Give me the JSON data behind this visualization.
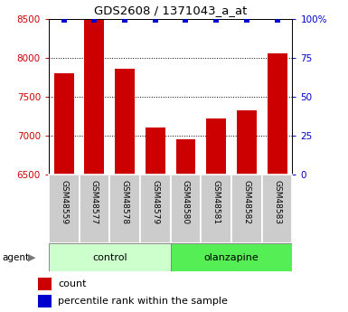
{
  "title": "GDS2608 / 1371043_a_at",
  "samples": [
    "GSM48559",
    "GSM48577",
    "GSM48578",
    "GSM48579",
    "GSM48580",
    "GSM48581",
    "GSM48582",
    "GSM48583"
  ],
  "counts": [
    7800,
    8480,
    7860,
    7110,
    6950,
    7220,
    7330,
    8060
  ],
  "percentile_ranks": [
    99,
    99,
    99,
    99,
    99,
    99,
    99,
    99
  ],
  "groups": [
    "control",
    "control",
    "control",
    "control",
    "olanzapine",
    "olanzapine",
    "olanzapine",
    "olanzapine"
  ],
  "group_colors": {
    "control": "#ccffcc",
    "olanzapine": "#55ee55"
  },
  "bar_color": "#cc0000",
  "percentile_color": "#0000cc",
  "ylim_left": [
    6500,
    8500
  ],
  "ylim_right": [
    0,
    100
  ],
  "yticks_left": [
    6500,
    7000,
    7500,
    8000,
    8500
  ],
  "yticks_right": [
    0,
    25,
    50,
    75,
    100
  ],
  "yticklabels_right": [
    "0",
    "25",
    "50",
    "75",
    "100%"
  ],
  "sample_box_color": "#cccccc",
  "legend_count_label": "count",
  "legend_percentile_label": "percentile rank within the sample",
  "agent_label": "agent",
  "bar_width": 0.65
}
